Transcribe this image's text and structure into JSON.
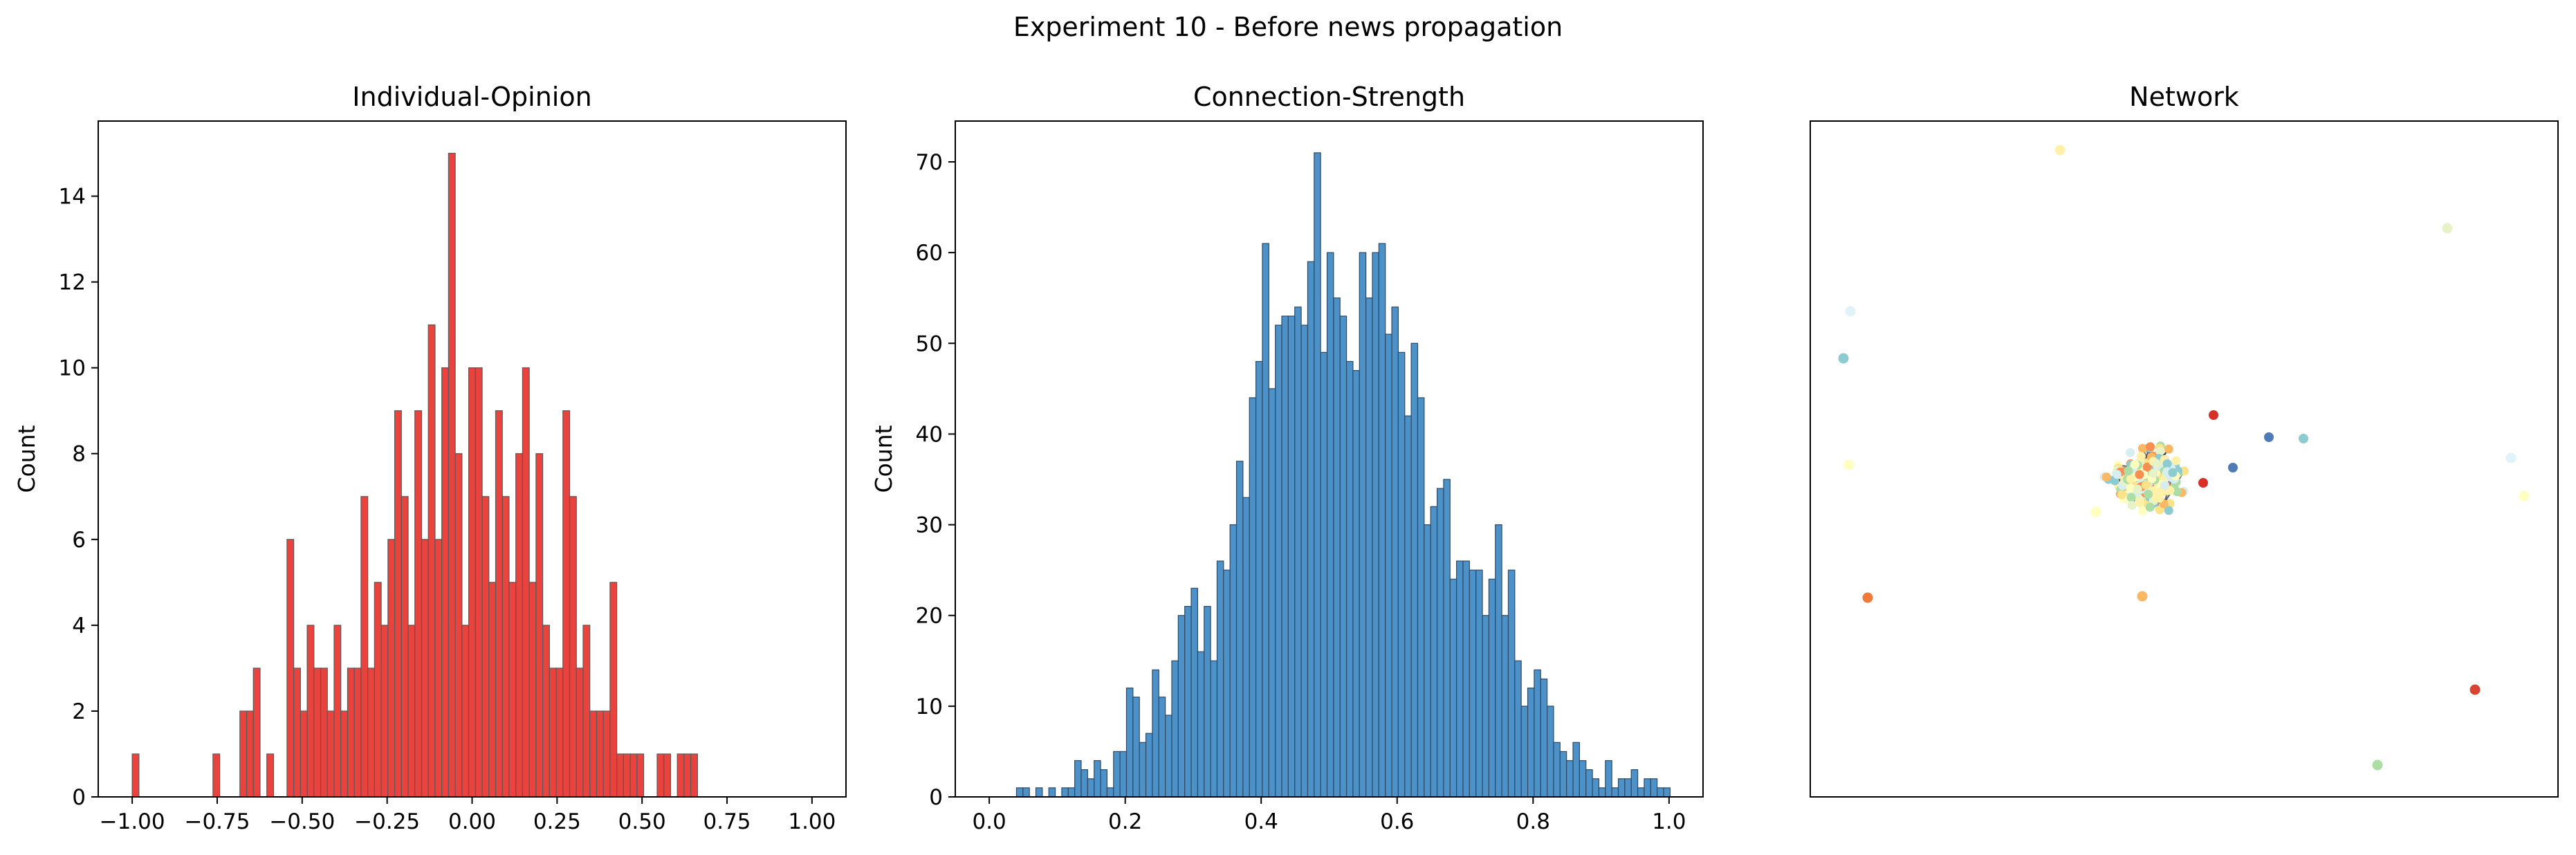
{
  "figure": {
    "title": "Experiment 10 - Before news propagation"
  },
  "chart_data": [
    {
      "type": "bar",
      "title": "Individual-Opinion",
      "xlabel": "",
      "ylabel": "Count",
      "xlim": [
        -1.1,
        1.1
      ],
      "ylim": [
        0,
        15.75
      ],
      "xticks": [
        -1.0,
        -0.75,
        -0.5,
        -0.25,
        0.0,
        0.25,
        0.5,
        0.75,
        1.0
      ],
      "xtick_labels": [
        "−1.00",
        "−0.75",
        "−0.50",
        "−0.25",
        "0.00",
        "0.25",
        "0.50",
        "0.75",
        "1.00"
      ],
      "yticks": [
        0,
        2,
        4,
        6,
        8,
        10,
        12,
        14
      ],
      "ytick_labels": [
        "0",
        "2",
        "4",
        "6",
        "8",
        "10",
        "12",
        "14"
      ],
      "bins": {
        "start": -1.0,
        "width": 0.0198
      },
      "values": [
        1,
        0,
        0,
        0,
        0,
        0,
        0,
        0,
        0,
        0,
        0,
        0,
        1,
        0,
        0,
        0,
        2,
        2,
        3,
        0,
        1,
        0,
        0,
        6,
        3,
        2,
        4,
        3,
        3,
        2,
        4,
        2,
        3,
        3,
        7,
        3,
        5,
        4,
        6,
        9,
        7,
        4,
        9,
        6,
        11,
        6,
        10,
        15,
        8,
        4,
        10,
        10,
        7,
        5,
        9,
        7,
        5,
        8,
        10,
        5,
        8,
        4,
        3,
        3,
        9,
        7,
        3,
        4,
        2,
        2,
        2,
        5,
        1,
        1,
        1,
        1,
        0,
        0,
        1,
        1,
        0,
        1,
        1,
        1,
        0,
        0,
        0,
        0,
        0,
        0
      ],
      "color": "#e8322c",
      "edge_color": "#5a5a5a",
      "grid": false
    },
    {
      "type": "bar",
      "title": "Connection-Strength",
      "xlabel": "",
      "ylabel": "Count",
      "xlim": [
        -0.05,
        1.05
      ],
      "ylim": [
        0,
        74.5
      ],
      "xticks": [
        0.0,
        0.2,
        0.4,
        0.6,
        0.8,
        1.0
      ],
      "xtick_labels": [
        "0.0",
        "0.2",
        "0.4",
        "0.6",
        "0.8",
        "1.0"
      ],
      "yticks": [
        0,
        10,
        20,
        30,
        40,
        50,
        60,
        70
      ],
      "ytick_labels": [
        "0",
        "10",
        "20",
        "30",
        "40",
        "50",
        "60",
        "70"
      ],
      "bins": {
        "start": 0.04,
        "width": 0.00952
      },
      "values": [
        1,
        1,
        0,
        1,
        0,
        1,
        0,
        1,
        1,
        4,
        3,
        2,
        4,
        3,
        1,
        5,
        5,
        12,
        11,
        6,
        7,
        14,
        11,
        9,
        15,
        20,
        21,
        23,
        16,
        21,
        15,
        26,
        25,
        30,
        37,
        33,
        44,
        48,
        61,
        45,
        52,
        53,
        53,
        54,
        52,
        59,
        71,
        49,
        60,
        55,
        53,
        48,
        47,
        60,
        55,
        60,
        61,
        51,
        54,
        49,
        42,
        50,
        44,
        30,
        32,
        34,
        35,
        24,
        26,
        26,
        25,
        25,
        20,
        24,
        30,
        20,
        25,
        15,
        10,
        12,
        14,
        13,
        10,
        6,
        5,
        4,
        6,
        4,
        3,
        2,
        1,
        4,
        1,
        2,
        2,
        3,
        1,
        2,
        2,
        1,
        1
      ],
      "color": "#3d88c2",
      "edge_color": "#2e4a66",
      "grid": false
    },
    {
      "type": "network",
      "title": "Network",
      "axes_visible": false
    }
  ]
}
